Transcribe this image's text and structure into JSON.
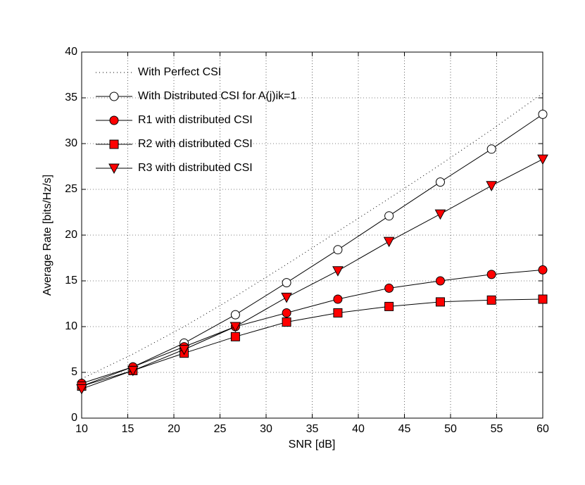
{
  "chart_data": {
    "type": "line",
    "xlabel": "SNR [dB]",
    "ylabel": "Average Rate [bits/Hz/s]",
    "x": [
      10,
      15.56,
      21.11,
      26.67,
      32.22,
      37.78,
      43.33,
      48.89,
      54.44,
      60
    ],
    "series": [
      {
        "name": "With Perfect CSI",
        "color": "#000000",
        "dash": "dotted",
        "marker": "none",
        "marker_fill": "none",
        "values": [
          4.3,
          7.0,
          10.0,
          13.3,
          16.8,
          20.4,
          24.0,
          27.7,
          31.5,
          35.5
        ]
      },
      {
        "name": "With Distributed CSI for A(j)ik=1",
        "color": "#000000",
        "dash": "solid",
        "marker": "circle",
        "marker_fill": "#ffffff",
        "values": [
          3.5,
          5.6,
          8.2,
          11.3,
          14.8,
          18.4,
          22.1,
          25.8,
          29.4,
          33.2
        ]
      },
      {
        "name": "R1 with distributed CSI",
        "color": "#000000",
        "dash": "solid",
        "marker": "circle",
        "marker_fill": "#ff0000",
        "values": [
          3.8,
          5.6,
          7.8,
          10.0,
          11.5,
          13.0,
          14.2,
          15.0,
          15.7,
          16.2
        ]
      },
      {
        "name": "R2 with distributed CSI",
        "color": "#000000",
        "dash": "solid",
        "marker": "square",
        "marker_fill": "#ff0000",
        "values": [
          3.5,
          5.2,
          7.1,
          8.9,
          10.5,
          11.5,
          12.2,
          12.7,
          12.9,
          13.0
        ]
      },
      {
        "name": "R3 with distributed CSI",
        "color": "#000000",
        "dash": "solid",
        "marker": "triangle-down",
        "marker_fill": "#ff0000",
        "values": [
          3.2,
          5.2,
          7.5,
          10.0,
          13.2,
          16.1,
          19.3,
          22.3,
          25.4,
          28.3
        ]
      }
    ],
    "xlim": [
      10,
      60
    ],
    "xticks": [
      10,
      15,
      20,
      25,
      30,
      35,
      40,
      45,
      50,
      55,
      60
    ],
    "ylim": [
      0,
      40
    ],
    "yticks": [
      0,
      5,
      10,
      15,
      20,
      25,
      30,
      35,
      40
    ],
    "grid": true,
    "legend": "upper left"
  }
}
